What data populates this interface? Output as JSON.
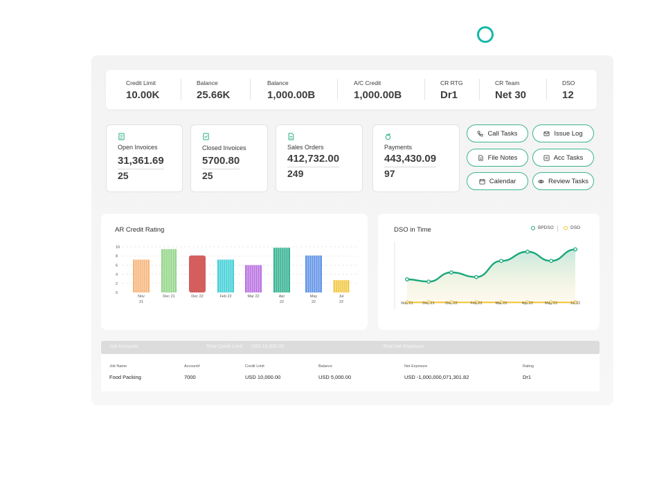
{
  "stats": [
    {
      "label": "Credit Limit",
      "value": "10.00K"
    },
    {
      "label": "Balance",
      "value": "25.66K"
    },
    {
      "label": "Balance",
      "value": "1,000.00B"
    },
    {
      "label": "A/C Credit",
      "value": "1,000.00B"
    },
    {
      "label": "CR RTG",
      "value": "Dr1"
    },
    {
      "label": "CR Team",
      "value": "Net 30"
    },
    {
      "label": "DSO",
      "value": "12"
    }
  ],
  "cards": [
    {
      "label": "Open Invoices",
      "amount": "31,361.69",
      "count": "25",
      "icon": "invoice-icon"
    },
    {
      "label": "Closed Invoices",
      "amount": "5700.80",
      "count": "25",
      "icon": "closed-invoice-icon"
    },
    {
      "label": "Sales Orders",
      "amount": "412,732.00",
      "count": "249",
      "icon": "document-icon"
    },
    {
      "label": "Payments",
      "amount": "443,430.09",
      "count": "97",
      "icon": "payment-icon"
    }
  ],
  "actions": {
    "call_tasks": "Call Tasks",
    "issue_log": "Issue Log",
    "file_notes": "File Notes",
    "acc_tasks": "Acc Tasks",
    "calendar": "Calendar",
    "review_tasks": "Review Tasks"
  },
  "colors": {
    "accent": "#3bb58a",
    "teal_ring": "#14b8a6",
    "bpdso": "#1aa77a",
    "dso": "#f2c230"
  },
  "ar_chart": {
    "title": "AR Credit Rating",
    "chart_data": {
      "type": "bar",
      "categories": [
        "Nov 21",
        "Dec 21",
        "Dec 22",
        "Feb 22",
        "Mar 22",
        "Apr 22",
        "May 22",
        "Jul 22"
      ],
      "tick_lines": [
        [
          "Nov",
          "21"
        ],
        [
          "Dec 21"
        ],
        [
          "Dec 22"
        ],
        [
          "Feb 22"
        ],
        [
          "Mar 22"
        ],
        [
          "Apr",
          "22"
        ],
        [
          "May",
          "22"
        ],
        [
          "Jul",
          "22"
        ]
      ],
      "values": [
        7.2,
        9.5,
        8.1,
        7.2,
        6.0,
        9.8,
        8.1,
        2.7
      ],
      "colors": [
        "#f6ad6d",
        "#86d07a",
        "#cf4b4b",
        "#2fcad2",
        "#b063dd",
        "#1faa86",
        "#4f87e3",
        "#f1c230"
      ],
      "yticks": [
        "0",
        "2",
        "4",
        "6",
        "8",
        "10"
      ],
      "ylim": [
        0,
        10
      ]
    }
  },
  "dso_chart": {
    "title": "DSO in Time",
    "chart_data": {
      "type": "line",
      "categories": [
        "Nov 21",
        "Dec 21",
        "Dec 22",
        "Feb 22",
        "Mar 22",
        "Apr 22",
        "May 22",
        "Jul 22"
      ],
      "series": [
        {
          "name": "BPDSO",
          "values": [
            12,
            11,
            15,
            13,
            20,
            24,
            20,
            25
          ]
        },
        {
          "name": "DSO",
          "values": [
            2,
            2,
            2,
            2,
            2,
            2,
            2,
            2
          ]
        }
      ],
      "ylim": [
        0,
        30
      ]
    }
  },
  "table": {
    "header_strip": [
      "Job Accounts",
      "Total Credit Limit",
      "USD 10,000.00",
      "Total Net Exposure"
    ],
    "columns": [
      "Job Name",
      "Account#",
      "Credit Limit",
      "Balance",
      "Net Exposure",
      "Rating"
    ],
    "rows": [
      [
        "Food Packing",
        "7000",
        "USD 10,000.00",
        "USD 5,000.00",
        "USD -1,000,000,071,301.82",
        "Dr1"
      ]
    ]
  }
}
